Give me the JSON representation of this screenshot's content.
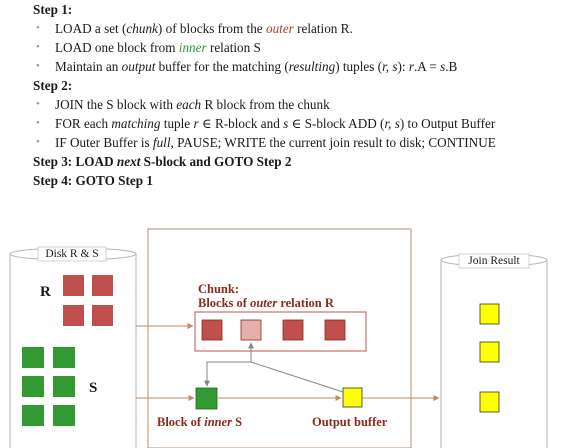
{
  "steps": [
    {
      "title": "Step 1:",
      "bullets": [
        [
          "LOAD a set (",
          "chunk",
          ") of blocks from the ",
          "outer",
          " relation R."
        ],
        [
          "LOAD one block from ",
          "inner",
          " relation S"
        ],
        [
          "Maintain an ",
          "output",
          " buffer for the matching (",
          "resulting",
          ") tuples (",
          "r, s",
          "): ",
          "r",
          ".A = ",
          "s",
          ".B"
        ]
      ]
    },
    {
      "title": "Step 2:",
      "bullets": [
        [
          "JOIN the S block with ",
          "each",
          " R block from the chunk"
        ],
        [
          "FOR each ",
          "matching",
          " tuple ",
          "r",
          " ∈ R-block and ",
          "s",
          " ∈ S-block ADD (",
          "r, s",
          ") to Output Buffer"
        ],
        [
          "IF Outer Buffer is ",
          "full",
          ", PAUSE; WRITE the current join result to disk; CONTINUE"
        ]
      ]
    },
    {
      "title": "Step 3:",
      "rest": [
        " LOAD ",
        "next",
        " S-block and GOTO Step 2"
      ]
    },
    {
      "title": "Step 4:",
      "rest": [
        " GOTO Step 1"
      ]
    }
  ],
  "diagram": {
    "disk_label": "Disk R & S",
    "r_label": "R",
    "s_label": "S",
    "chunk_title_line1": "Chunk:",
    "chunk_title_line2": [
      "Blocks of ",
      "outer",
      " relation R"
    ],
    "inner_block_label": [
      "Block of ",
      "inner",
      " S"
    ],
    "output_buffer_label": "Output buffer",
    "join_result_label": "Join Result"
  },
  "colors": {
    "r_block": "#c0504d",
    "r_block_active": "#e6b0aa",
    "s_block": "#339933",
    "output_block": "#ffff00",
    "line": "#b78c6e",
    "arrow": "#7a8a8a"
  }
}
